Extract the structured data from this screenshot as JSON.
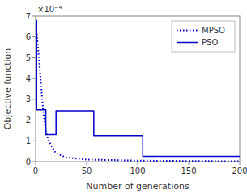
{
  "chart_data": {
    "type": "line",
    "title": "",
    "xlabel": "Number of generations",
    "ylabel": "Objective function",
    "annotations": [
      "×10⁻⁴"
    ],
    "xlim": [
      0,
      200
    ],
    "ylim": [
      0,
      0.0007
    ],
    "xticks": [
      0,
      50,
      100,
      150,
      200
    ],
    "yticks": [
      0,
      {
        "value": 0.0001,
        "label": "1"
      },
      {
        "value": 0.0002,
        "label": "2"
      },
      {
        "value": 0.0003,
        "label": "3"
      },
      {
        "value": 0.0004,
        "label": "4"
      },
      {
        "value": 0.0005,
        "label": "5"
      },
      {
        "value": 0.0006,
        "label": "6"
      },
      {
        "value": 0.0007,
        "label": "7"
      }
    ],
    "grid": false,
    "legend": "upper right",
    "series": [
      {
        "name": "MPSO",
        "color": "#0000cc",
        "line_style": "dotted",
        "x": [
          0,
          1,
          2,
          3,
          4,
          5,
          6,
          7,
          8,
          9,
          10,
          12,
          15,
          18,
          20,
          25,
          30,
          50,
          100,
          150,
          200
        ],
        "values": [
          0.00066,
          0.00062,
          0.00057,
          0.00051,
          0.00045,
          0.00039,
          0.00033,
          0.00027,
          0.00022,
          0.00019,
          0.00015,
          0.00011,
          8e-05,
          5.5e-05,
          4e-05,
          3e-05,
          2e-05,
          1e-05,
          5e-06,
          3e-06,
          2e-06
        ]
      },
      {
        "name": "PSO",
        "color": "#0000cc",
        "line_style": "solid",
        "x": [
          0,
          1,
          1,
          10,
          10,
          20,
          20,
          57,
          57,
          105,
          105,
          200
        ],
        "values": [
          0.00068,
          0.00068,
          0.00025,
          0.00025,
          0.00013,
          0.00013,
          0.000245,
          0.000245,
          0.000125,
          0.000125,
          2.5e-05,
          2.5e-05
        ]
      }
    ]
  }
}
